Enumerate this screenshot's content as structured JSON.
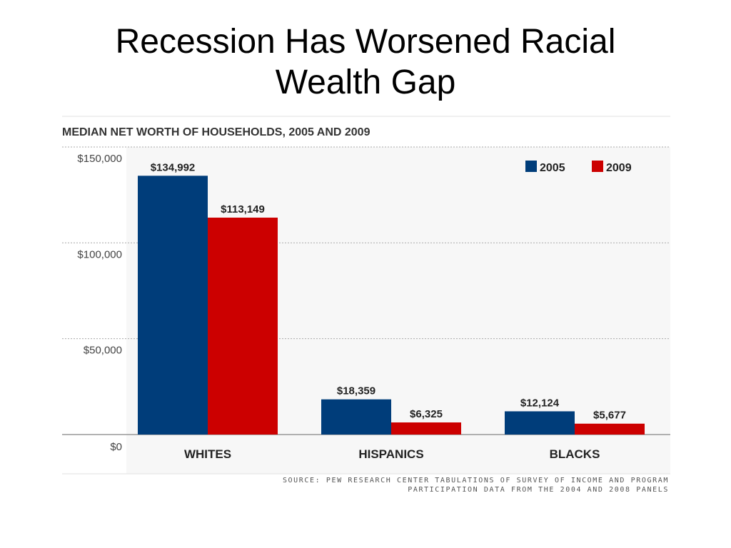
{
  "slide": {
    "title_line1": "Recession Has Worsened Racial",
    "title_line2": "Wealth Gap"
  },
  "chart_data": {
    "type": "bar",
    "title": "MEDIAN NET WORTH OF HOUSEHOLDS, 2005 AND 2009",
    "categories": [
      "WHITES",
      "HISPANICS",
      "BLACKS"
    ],
    "series": [
      {
        "name": "2005",
        "values": [
          134992,
          18359,
          12124
        ],
        "labels": [
          "$134,992",
          "$18,359",
          "$12,124"
        ],
        "color": "#003d7a"
      },
      {
        "name": "2009",
        "values": [
          113149,
          6325,
          5677
        ],
        "labels": [
          "$113,149",
          "$6,325",
          "$5,677"
        ],
        "color": "#cc0000"
      }
    ],
    "yticks": [
      {
        "value": 0,
        "label": "$0"
      },
      {
        "value": 50000,
        "label": "$50,000"
      },
      {
        "value": 100000,
        "label": "$100,000"
      },
      {
        "value": 150000,
        "label": "$150,000"
      }
    ],
    "ylim": [
      0,
      150000
    ],
    "grid": true,
    "legend": "top-right",
    "source_line1": "SOURCE: PEW RESEARCH CENTER TABULATIONS OF SURVEY OF INCOME AND PROGRAM",
    "source_line2": "PARTICIPATION DATA FROM THE 2004 AND 2008 PANELS"
  }
}
